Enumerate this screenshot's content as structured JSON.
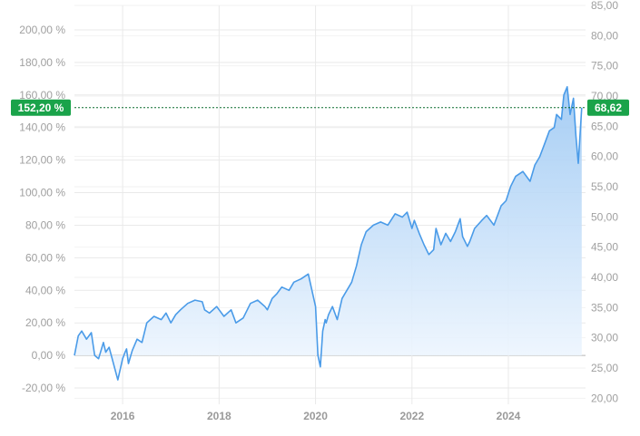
{
  "chart_data": {
    "type": "area",
    "title": "",
    "xlabel": "",
    "ylabel": "",
    "x_ticks": [
      "2016",
      "2018",
      "2020",
      "2022",
      "2024"
    ],
    "x_range": [
      2015.0,
      2025.6
    ],
    "y_left": {
      "ticks": [
        "-20,00 %",
        "0,00 %",
        "20,00 %",
        "40,00 %",
        "60,00 %",
        "80,00 %",
        "100,00 %",
        "120,00 %",
        "140,00 %",
        "160,00 %",
        "180,00 %",
        "200,00 %"
      ],
      "range": [
        -30,
        215
      ]
    },
    "y_right": {
      "ticks": [
        "20,00",
        "25,00",
        "30,00",
        "35,00",
        "40,00",
        "45,00",
        "50,00",
        "55,00",
        "60,00",
        "65,00",
        "70,00",
        "75,00",
        "80,00",
        "85,00"
      ],
      "range": [
        19,
        85
      ]
    },
    "grid": true,
    "current": {
      "percent_label": "152,20 %",
      "price_label": "68,62",
      "percent_value": 152.2
    },
    "colors": {
      "line": "#4a9be8",
      "fill_top": "#9cc8f3",
      "fill_bottom": "#f4f9ff",
      "badge": "#1aa34a",
      "grid": "#e9e9e9",
      "zero": "#b8b8b8"
    },
    "series": [
      {
        "x": [
          2015.0,
          2015.08,
          2015.15,
          2015.25,
          2015.35,
          2015.42,
          2015.5,
          2015.6,
          2015.65,
          2015.72,
          2015.8,
          2015.9,
          2016.0,
          2016.05,
          2016.08,
          2016.12,
          2016.2,
          2016.3,
          2016.4,
          2016.5,
          2016.65,
          2016.8,
          2016.9,
          2017.0,
          2017.1,
          2017.2,
          2017.35,
          2017.5,
          2017.65,
          2017.7,
          2017.8,
          2017.95,
          2018.1,
          2018.25,
          2018.35,
          2018.5,
          2018.65,
          2018.8,
          2018.95,
          2019.0,
          2019.1,
          2019.2,
          2019.3,
          2019.45,
          2019.55,
          2019.7,
          2019.85,
          2020.0,
          2020.05,
          2020.1,
          2020.15,
          2020.2,
          2020.22,
          2020.27,
          2020.35,
          2020.45,
          2020.55,
          2020.65,
          2020.75,
          2020.85,
          2020.95,
          2021.05,
          2021.2,
          2021.35,
          2021.5,
          2021.65,
          2021.8,
          2021.9,
          2022.0,
          2022.05,
          2022.15,
          2022.25,
          2022.35,
          2022.45,
          2022.5,
          2022.6,
          2022.7,
          2022.8,
          2022.9,
          2023.0,
          2023.05,
          2023.15,
          2023.2,
          2023.3,
          2023.45,
          2023.55,
          2023.7,
          2023.85,
          2023.95,
          2024.05,
          2024.15,
          2024.3,
          2024.45,
          2024.55,
          2024.65,
          2024.75,
          2024.85,
          2024.95,
          2025.0,
          2025.1,
          2025.15,
          2025.22,
          2025.28,
          2025.35,
          2025.4,
          2025.45,
          2025.52
        ],
        "y": [
          0,
          12,
          15,
          10,
          14,
          0,
          -2,
          8,
          2,
          5,
          -4,
          -15,
          -2,
          2,
          4,
          -5,
          3,
          10,
          8,
          20,
          24,
          22,
          26,
          20,
          25,
          28,
          32,
          34,
          33,
          28,
          26,
          30,
          24,
          28,
          20,
          23,
          32,
          34,
          30,
          28,
          35,
          38,
          42,
          40,
          45,
          47,
          50,
          30,
          0,
          -7,
          15,
          22,
          20,
          25,
          30,
          22,
          35,
          40,
          45,
          55,
          68,
          76,
          80,
          82,
          80,
          87,
          85,
          88,
          78,
          83,
          75,
          68,
          62,
          65,
          78,
          68,
          75,
          70,
          76,
          84,
          73,
          67,
          70,
          78,
          83,
          86,
          80,
          92,
          95,
          104,
          110,
          113,
          107,
          117,
          122,
          130,
          138,
          140,
          148,
          145,
          160,
          165,
          148,
          158,
          135,
          118,
          152.2
        ]
      }
    ]
  }
}
